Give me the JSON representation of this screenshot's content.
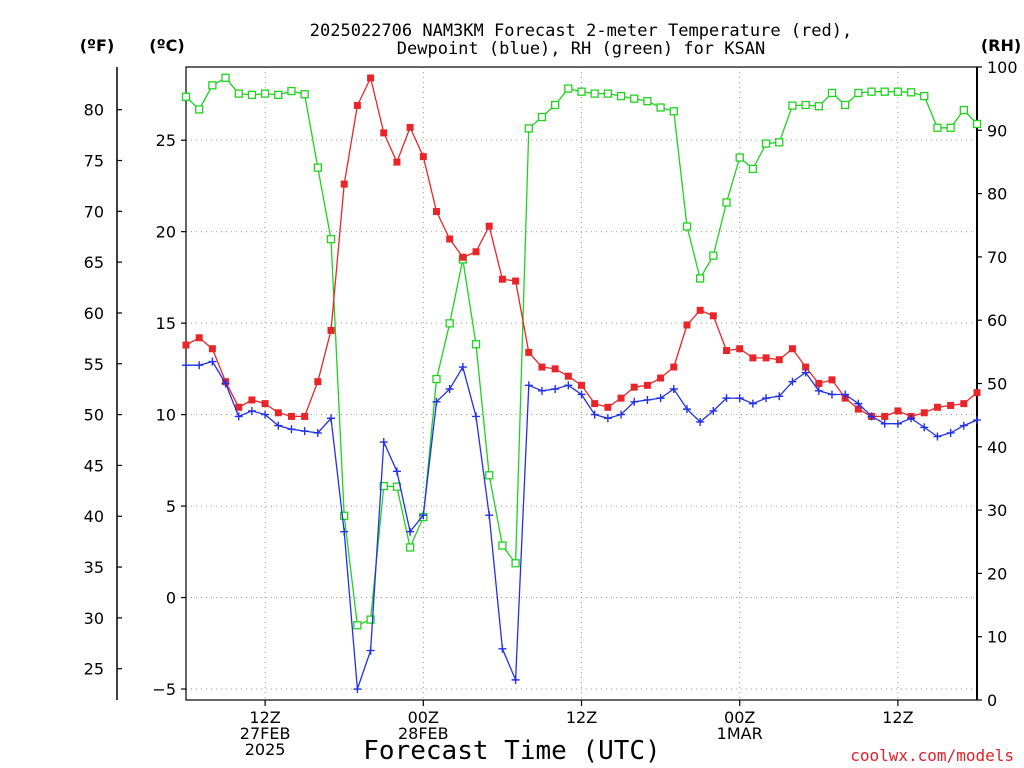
{
  "title_line1": "2025022706 NAM3KM Forecast 2-meter Temperature (red),",
  "title_line2": "Dewpoint (blue), RH (green) for KSAN",
  "unit_left_f": "(ºF)",
  "unit_left_c": "(ºC)",
  "unit_right_rh": "(RH)",
  "xlabel": "Forecast Time (UTC)",
  "credit": "coolwx.com/models",
  "colors": {
    "temperature": "#e8262a",
    "dewpoint": "#2230e6",
    "rh": "#1fd21f",
    "grid": "#9a9a9a"
  },
  "chart_data": {
    "type": "line",
    "x_unit": "forecast hour from 2025-02-27 06Z",
    "x_range": [
      0,
      60
    ],
    "x_ticks": [
      {
        "hour": 6,
        "label_lines": [
          "12Z",
          "27FEB",
          "2025"
        ]
      },
      {
        "hour": 18,
        "label_lines": [
          "00Z",
          "28FEB"
        ]
      },
      {
        "hour": 30,
        "label_lines": [
          "12Z"
        ]
      },
      {
        "hour": 42,
        "label_lines": [
          "00Z",
          "1MAR"
        ]
      },
      {
        "hour": 54,
        "label_lines": [
          "12Z"
        ]
      }
    ],
    "y_left_c": {
      "range": [
        -5.6,
        29
      ],
      "ticks": [
        -5,
        0,
        5,
        10,
        15,
        20,
        25
      ]
    },
    "y_left_f": {
      "ticks": [
        25,
        30,
        35,
        40,
        45,
        50,
        55,
        60,
        65,
        70,
        75,
        80
      ]
    },
    "y_right_rh": {
      "range": [
        0,
        100
      ],
      "ticks": [
        0,
        10,
        20,
        30,
        40,
        50,
        60,
        70,
        80,
        90,
        100
      ]
    },
    "grid": true,
    "series": [
      {
        "name": "Temperature",
        "axis": "C",
        "x": [
          0,
          1,
          2,
          3,
          4,
          5,
          6,
          7,
          8,
          9,
          10,
          11,
          12,
          13,
          14,
          15,
          16,
          17,
          18,
          19,
          20,
          21,
          22,
          23,
          24,
          25,
          26,
          27,
          28,
          29,
          30,
          31,
          32,
          33,
          34,
          35,
          36,
          37,
          38,
          39,
          40,
          41,
          42,
          43,
          44,
          45,
          46,
          47,
          48,
          49,
          50,
          51,
          52,
          53,
          54,
          55,
          56,
          57,
          58,
          59,
          60
        ],
        "values": [
          13.8,
          14.2,
          13.6,
          11.8,
          10.4,
          10.8,
          10.6,
          10.1,
          9.9,
          9.9,
          11.8,
          14.6,
          22.6,
          26.9,
          28.4,
          25.4,
          23.8,
          25.7,
          24.1,
          21.1,
          19.6,
          18.6,
          18.9,
          20.3,
          17.4,
          17.3,
          13.4,
          12.6,
          12.5,
          12.1,
          11.6,
          10.6,
          10.4,
          10.9,
          11.5,
          11.6,
          12.0,
          12.6,
          14.9,
          15.7,
          15.4,
          13.5,
          13.6,
          13.1,
          13.1,
          13.0,
          13.6,
          12.6,
          11.7,
          11.9,
          10.9,
          10.3,
          9.9,
          9.9,
          10.2,
          9.9,
          10.1,
          10.4,
          10.5,
          10.6,
          11.2
        ]
      },
      {
        "name": "Dewpoint",
        "axis": "C",
        "x": [
          0,
          1,
          2,
          3,
          4,
          5,
          6,
          7,
          8,
          9,
          10,
          11,
          12,
          13,
          14,
          15,
          16,
          17,
          18,
          19,
          20,
          21,
          22,
          23,
          24,
          25,
          26,
          27,
          28,
          29,
          30,
          31,
          32,
          33,
          34,
          35,
          36,
          37,
          38,
          39,
          40,
          41,
          42,
          43,
          44,
          45,
          46,
          47,
          48,
          49,
          50,
          51,
          52,
          53,
          54,
          55,
          56,
          57,
          58,
          59,
          60
        ],
        "values": [
          12.7,
          12.7,
          12.9,
          11.7,
          9.9,
          10.2,
          10.0,
          9.4,
          9.2,
          9.1,
          9.0,
          9.8,
          3.6,
          -5.0,
          -2.9,
          8.5,
          6.9,
          3.6,
          4.5,
          10.7,
          11.4,
          12.6,
          9.9,
          4.5,
          -2.8,
          -4.5,
          11.6,
          11.3,
          11.4,
          11.6,
          11.1,
          10.0,
          9.8,
          10.0,
          10.7,
          10.8,
          10.9,
          11.4,
          10.3,
          9.6,
          10.2,
          10.9,
          10.9,
          10.6,
          10.9,
          11.0,
          11.8,
          12.3,
          11.3,
          11.1,
          11.1,
          10.6,
          9.9,
          9.5,
          9.5,
          9.8,
          9.3,
          8.8,
          9.0,
          9.4,
          9.7
        ]
      },
      {
        "name": "RH",
        "axis": "RH",
        "x": [
          0,
          1,
          2,
          3,
          4,
          5,
          6,
          7,
          8,
          9,
          10,
          11,
          12,
          13,
          14,
          15,
          16,
          17,
          18,
          19,
          20,
          21,
          22,
          23,
          24,
          25,
          26,
          27,
          28,
          29,
          30,
          31,
          32,
          33,
          34,
          35,
          36,
          37,
          38,
          39,
          40,
          41,
          42,
          43,
          44,
          45,
          46,
          47,
          48,
          49,
          50,
          51,
          52,
          53,
          54,
          55,
          56,
          57,
          58,
          59,
          60
        ],
        "values": [
          95.3,
          93.3,
          97.1,
          98.3,
          95.8,
          95.6,
          95.8,
          95.6,
          96.2,
          95.7,
          84.1,
          72.8,
          29.1,
          11.8,
          12.7,
          33.8,
          33.7,
          24.1,
          28.9,
          50.7,
          59.5,
          69.6,
          56.2,
          35.5,
          24.4,
          21.6,
          90.3,
          92.1,
          94.0,
          96.6,
          96.1,
          95.8,
          95.8,
          95.4,
          95.0,
          94.6,
          93.6,
          93.0,
          74.8,
          66.6,
          70.2,
          78.6,
          85.7,
          83.9,
          87.9,
          88.1,
          93.9,
          94.0,
          93.8,
          95.9,
          94.0,
          95.9,
          96.1,
          96.1,
          96.1,
          96.0,
          95.4,
          90.4,
          90.4,
          93.2,
          91.0
        ]
      }
    ]
  }
}
